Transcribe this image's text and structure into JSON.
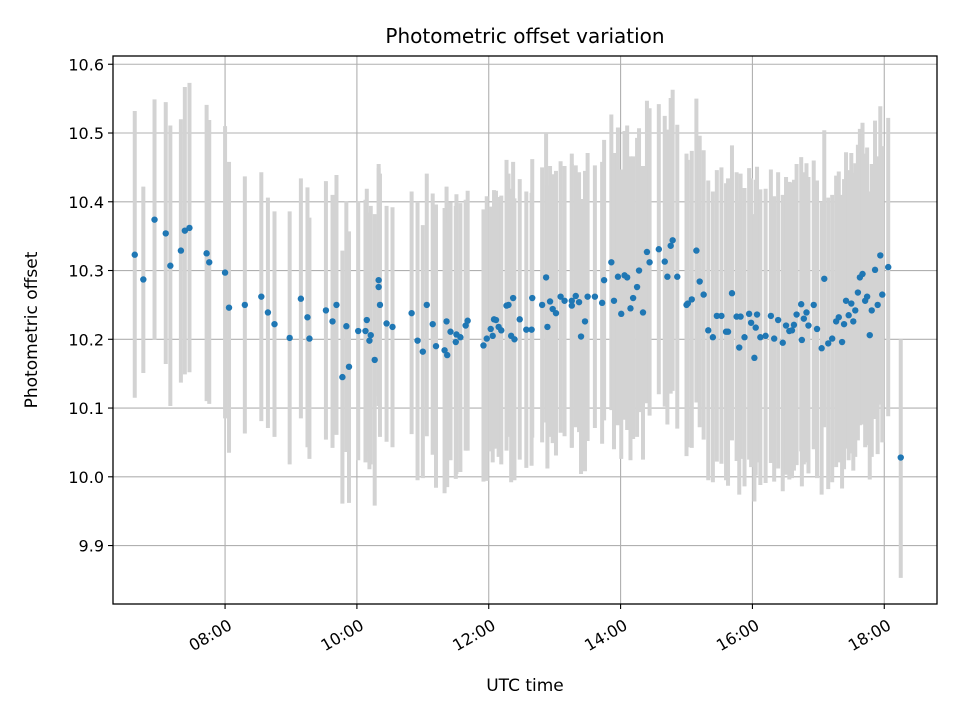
{
  "chart_data": {
    "type": "scatter",
    "title": "Photometric offset variation",
    "xlabel": "UTC time",
    "ylabel": "Photometric offset",
    "x_unit": "hours UTC",
    "xlim": [
      6.3,
      18.8
    ],
    "ylim": [
      9.815,
      10.612
    ],
    "x_ticks": [
      8,
      10,
      12,
      14,
      16,
      18
    ],
    "x_tick_labels": [
      "08:00",
      "10:00",
      "12:00",
      "14:00",
      "16:00",
      "18:00"
    ],
    "y_ticks": [
      9.9,
      10.0,
      10.1,
      10.2,
      10.3,
      10.4,
      10.5,
      10.6
    ],
    "y_tick_labels": [
      "9.9",
      "10.0",
      "10.1",
      "10.2",
      "10.3",
      "10.4",
      "10.5",
      "10.6"
    ],
    "grid": true,
    "marker_color": "#1f77b4",
    "errorbar_color": "#d3d3d3",
    "points": [
      [
        6.63,
        10.323,
        10.115,
        10.532
      ],
      [
        6.76,
        10.287,
        10.151,
        10.422
      ],
      [
        6.93,
        10.374,
        10.199,
        10.549
      ],
      [
        7.1,
        10.354,
        10.164,
        10.545
      ],
      [
        7.17,
        10.307,
        10.103,
        10.511
      ],
      [
        7.33,
        10.329,
        10.137,
        10.52
      ],
      [
        7.39,
        10.358,
        10.149,
        10.567
      ],
      [
        7.46,
        10.362,
        10.152,
        10.573
      ],
      [
        7.72,
        10.325,
        10.11,
        10.541
      ],
      [
        7.76,
        10.312,
        10.106,
        10.519
      ],
      [
        8.0,
        10.297,
        10.085,
        10.51
      ],
      [
        8.06,
        10.246,
        10.035,
        10.458
      ],
      [
        8.3,
        10.25,
        10.063,
        10.437
      ],
      [
        8.55,
        10.262,
        10.081,
        10.443
      ],
      [
        8.65,
        10.239,
        10.071,
        10.406
      ],
      [
        8.75,
        10.222,
        10.058,
        10.386
      ],
      [
        8.98,
        10.202,
        10.018,
        10.386
      ],
      [
        9.15,
        10.259,
        10.085,
        10.434
      ],
      [
        9.25,
        10.232,
        10.043,
        10.421
      ],
      [
        9.28,
        10.201,
        10.026,
        10.377
      ],
      [
        9.53,
        10.242,
        10.054,
        10.43
      ],
      [
        9.63,
        10.226,
        10.042,
        10.41
      ],
      [
        9.69,
        10.25,
        10.061,
        10.439
      ],
      [
        9.78,
        10.145,
        9.961,
        10.329
      ],
      [
        9.88,
        10.16,
        9.962,
        10.357
      ],
      [
        9.84,
        10.219,
        10.036,
        10.401
      ],
      [
        10.02,
        10.212,
        10.024,
        10.401
      ],
      [
        10.15,
        10.228,
        10.037,
        10.419
      ],
      [
        10.21,
        10.206,
        10.018,
        10.394
      ],
      [
        10.19,
        10.198,
        10.011,
        10.384
      ],
      [
        10.13,
        10.212,
        10.021,
        10.403
      ],
      [
        10.33,
        10.276,
        10.103,
        10.449
      ],
      [
        10.33,
        10.286,
        10.117,
        10.455
      ],
      [
        10.27,
        10.17,
        9.958,
        10.382
      ],
      [
        10.35,
        10.25,
        10.058,
        10.441
      ],
      [
        10.45,
        10.223,
        10.051,
        10.394
      ],
      [
        10.54,
        10.218,
        10.043,
        10.392
      ],
      [
        10.83,
        10.238,
        10.062,
        10.415
      ],
      [
        10.92,
        10.198,
        9.995,
        10.4
      ],
      [
        11.0,
        10.182,
        9.998,
        10.366
      ],
      [
        11.06,
        10.25,
        10.059,
        10.441
      ],
      [
        11.15,
        10.222,
        10.032,
        10.412
      ],
      [
        11.2,
        10.19,
        9.984,
        10.396
      ],
      [
        11.36,
        10.226,
        10.029,
        10.422
      ],
      [
        11.42,
        10.211,
        10.024,
        10.399
      ],
      [
        11.33,
        10.184,
        9.976,
        10.391
      ],
      [
        11.37,
        10.177,
        9.985,
        10.368
      ],
      [
        11.5,
        10.196,
        9.997,
        10.394
      ],
      [
        11.51,
        10.207,
        10.004,
        10.411
      ],
      [
        11.57,
        10.203,
        10.007,
        10.398
      ],
      [
        11.65,
        10.22,
        10.038,
        10.403
      ],
      [
        11.68,
        10.227,
        10.038,
        10.416
      ],
      [
        11.92,
        10.191,
        9.993,
        10.389
      ],
      [
        11.97,
        10.201,
        9.994,
        10.408
      ],
      [
        12.03,
        10.215,
        10.037,
        10.393
      ],
      [
        12.08,
        10.229,
        10.041,
        10.417
      ],
      [
        12.06,
        10.205,
        10.021,
        10.388
      ],
      [
        12.15,
        10.218,
        10.029,
        10.407
      ],
      [
        12.11,
        10.228,
        10.041,
        10.416
      ],
      [
        12.19,
        10.213,
        10.018,
        10.409
      ],
      [
        12.27,
        10.249,
        10.038,
        10.461
      ],
      [
        12.3,
        10.25,
        10.058,
        10.441
      ],
      [
        12.37,
        10.26,
        10.062,
        10.458
      ],
      [
        12.34,
        10.205,
        9.992,
        10.419
      ],
      [
        12.39,
        10.2,
        9.995,
        10.405
      ],
      [
        12.47,
        10.229,
        10.025,
        10.433
      ],
      [
        12.57,
        10.214,
        10.013,
        10.415
      ],
      [
        12.66,
        10.26,
        10.057,
        10.462
      ],
      [
        12.65,
        10.214,
        10.016,
        10.413
      ],
      [
        12.81,
        10.25,
        10.05,
        10.45
      ],
      [
        12.87,
        10.29,
        10.079,
        10.5
      ],
      [
        12.89,
        10.218,
        10.012,
        10.424
      ],
      [
        12.93,
        10.255,
        10.058,
        10.452
      ],
      [
        12.97,
        10.244,
        10.049,
        10.44
      ],
      [
        13.02,
        10.238,
        10.031,
        10.445
      ],
      [
        13.09,
        10.262,
        10.064,
        10.459
      ],
      [
        13.15,
        10.256,
        10.059,
        10.452
      ],
      [
        13.26,
        10.256,
        10.042,
        10.47
      ],
      [
        13.32,
        10.263,
        10.072,
        10.453
      ],
      [
        13.26,
        10.249,
        10.043,
        10.455
      ],
      [
        13.37,
        10.254,
        10.065,
        10.443
      ],
      [
        13.4,
        10.204,
        10.004,
        10.404
      ],
      [
        13.46,
        10.226,
        10.008,
        10.445
      ],
      [
        13.5,
        10.262,
        10.052,
        10.471
      ],
      [
        13.61,
        10.262,
        10.071,
        10.453
      ],
      [
        13.72,
        10.253,
        10.048,
        10.458
      ],
      [
        13.75,
        10.286,
        10.082,
        10.49
      ],
      [
        13.86,
        10.312,
        10.097,
        10.527
      ],
      [
        13.9,
        10.256,
        10.04,
        10.471
      ],
      [
        13.96,
        10.291,
        10.075,
        10.508
      ],
      [
        14.01,
        10.237,
        10.026,
        10.447
      ],
      [
        14.06,
        10.293,
        10.083,
        10.503
      ],
      [
        14.1,
        10.29,
        10.068,
        10.511
      ],
      [
        14.15,
        10.245,
        10.024,
        10.466
      ],
      [
        14.19,
        10.26,
        10.055,
        10.466
      ],
      [
        14.25,
        10.276,
        10.058,
        10.493
      ],
      [
        14.28,
        10.3,
        10.094,
        10.507
      ],
      [
        14.34,
        10.239,
        10.025,
        10.452
      ],
      [
        14.4,
        10.327,
        10.107,
        10.547
      ],
      [
        14.44,
        10.312,
        10.089,
        10.536
      ],
      [
        14.58,
        10.331,
        10.12,
        10.542
      ],
      [
        14.67,
        10.313,
        10.102,
        10.525
      ],
      [
        14.71,
        10.291,
        10.076,
        10.505
      ],
      [
        14.76,
        10.336,
        10.121,
        10.551
      ],
      [
        14.79,
        10.344,
        10.125,
        10.563
      ],
      [
        14.86,
        10.291,
        10.07,
        10.512
      ],
      [
        15.0,
        10.25,
        10.03,
        10.47
      ],
      [
        15.02,
        10.252,
        10.043,
        10.461
      ],
      [
        15.08,
        10.258,
        10.042,
        10.474
      ],
      [
        15.15,
        10.329,
        10.108,
        10.55
      ],
      [
        15.2,
        10.284,
        10.072,
        10.496
      ],
      [
        15.26,
        10.265,
        10.054,
        10.475
      ],
      [
        15.33,
        10.213,
        9.995,
        10.431
      ],
      [
        15.4,
        10.203,
        9.992,
        10.415
      ],
      [
        15.46,
        10.234,
        10.022,
        10.446
      ],
      [
        15.53,
        10.234,
        10.019,
        10.45
      ],
      [
        15.6,
        10.211,
        9.995,
        10.427
      ],
      [
        15.63,
        10.211,
        9.987,
        10.434
      ],
      [
        15.69,
        10.267,
        10.053,
        10.482
      ],
      [
        15.76,
        10.233,
        10.023,
        10.443
      ],
      [
        15.8,
        10.188,
        9.974,
        10.401
      ],
      [
        15.82,
        10.233,
        10.026,
        10.441
      ],
      [
        15.88,
        10.203,
        9.986,
        10.42
      ],
      [
        15.95,
        10.237,
        10.025,
        10.449
      ],
      [
        15.98,
        10.224,
        10.014,
        10.434
      ],
      [
        16.03,
        10.173,
        9.964,
        10.382
      ],
      [
        16.05,
        10.217,
        10.002,
        10.432
      ],
      [
        16.07,
        10.236,
        10.021,
        10.451
      ],
      [
        16.12,
        10.203,
        9.988,
        10.418
      ],
      [
        16.2,
        10.205,
        9.991,
        10.419
      ],
      [
        16.28,
        10.234,
        10.02,
        10.447
      ],
      [
        16.33,
        10.201,
        9.993,
        10.408
      ],
      [
        16.39,
        10.228,
        10.012,
        10.443
      ],
      [
        16.46,
        10.195,
        9.979,
        10.41
      ],
      [
        16.51,
        10.22,
        10.003,
        10.436
      ],
      [
        16.56,
        10.212,
        9.996,
        10.429
      ],
      [
        16.6,
        10.213,
        9.998,
        10.428
      ],
      [
        16.63,
        10.221,
        10.009,
        10.432
      ],
      [
        16.67,
        10.236,
        10.017,
        10.455
      ],
      [
        16.74,
        10.251,
        10.037,
        10.465
      ],
      [
        16.75,
        10.199,
        9.986,
        10.412
      ],
      [
        16.78,
        10.23,
        10.018,
        10.443
      ],
      [
        16.82,
        10.239,
        10.021,
        10.456
      ],
      [
        16.85,
        10.22,
        10.005,
        10.436
      ],
      [
        16.93,
        10.25,
        10.04,
        10.46
      ],
      [
        16.98,
        10.215,
        9.998,
        10.431
      ],
      [
        17.05,
        10.187,
        9.974,
        10.4
      ],
      [
        17.09,
        10.288,
        10.072,
        10.504
      ],
      [
        17.15,
        10.194,
        9.982,
        10.406
      ],
      [
        17.21,
        10.201,
        9.992,
        10.41
      ],
      [
        17.27,
        10.226,
        10.014,
        10.438
      ],
      [
        17.31,
        10.232,
        10.021,
        10.444
      ],
      [
        17.36,
        10.196,
        9.983,
        10.41
      ],
      [
        17.39,
        10.222,
        10.011,
        10.433
      ],
      [
        17.42,
        10.256,
        10.041,
        10.472
      ],
      [
        17.46,
        10.235,
        10.024,
        10.446
      ],
      [
        17.5,
        10.252,
        10.034,
        10.471
      ],
      [
        17.53,
        10.226,
        10.009,
        10.442
      ],
      [
        17.56,
        10.242,
        10.029,
        10.456
      ],
      [
        17.6,
        10.268,
        10.053,
        10.483
      ],
      [
        17.63,
        10.29,
        10.075,
        10.506
      ],
      [
        17.67,
        10.295,
        10.076,
        10.515
      ],
      [
        17.71,
        10.256,
        10.043,
        10.47
      ],
      [
        17.74,
        10.262,
        10.046,
        10.479
      ],
      [
        17.78,
        10.206,
        9.996,
        10.415
      ],
      [
        17.81,
        10.242,
        10.029,
        10.455
      ],
      [
        17.86,
        10.301,
        10.084,
        10.518
      ],
      [
        17.9,
        10.25,
        10.033,
        10.466
      ],
      [
        17.94,
        10.322,
        10.105,
        10.539
      ],
      [
        17.97,
        10.265,
        10.05,
        10.481
      ],
      [
        18.06,
        10.305,
        10.088,
        10.522
      ],
      [
        18.25,
        10.028,
        9.853,
        10.2
      ]
    ]
  }
}
